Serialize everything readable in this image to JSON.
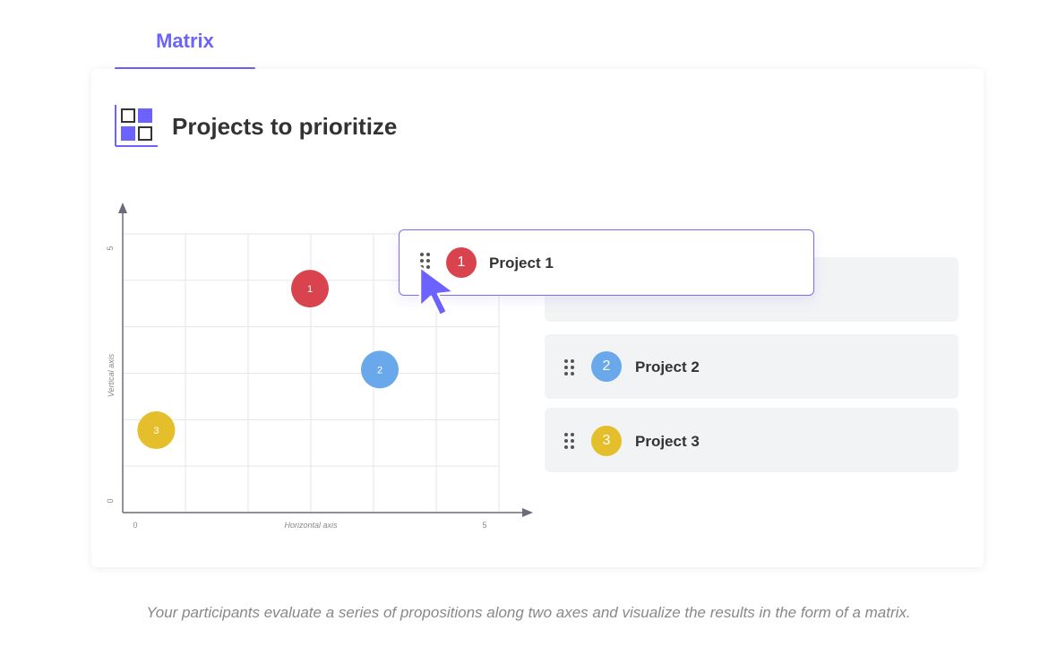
{
  "tab": {
    "label": "Matrix"
  },
  "header": {
    "title": "Projects to prioritize",
    "icon": "matrix-icon"
  },
  "accent_color": "#6c63ff",
  "chart_data": {
    "type": "scatter",
    "xlabel": "Horizontal axis",
    "ylabel": "Vertical axis",
    "xlim": [
      0,
      5
    ],
    "ylim": [
      0,
      5
    ],
    "x_ticks": [
      "0",
      "5"
    ],
    "y_ticks": [
      "0",
      "5"
    ],
    "grid": true,
    "points": [
      {
        "label": "1",
        "x": 2.5,
        "y": 4.2,
        "color": "#d9434e"
      },
      {
        "label": "2",
        "x": 3.5,
        "y": 2.6,
        "color": "#6aa8ec"
      },
      {
        "label": "3",
        "x": 0.3,
        "y": 1.4,
        "color": "#e5bf2b"
      }
    ]
  },
  "projects": [
    {
      "number": "1",
      "name": "Project 1",
      "color": "#d9434e"
    },
    {
      "number": "2",
      "name": "Project 2",
      "color": "#6aa8ec"
    },
    {
      "number": "3",
      "name": "Project 3",
      "color": "#e5bf2b"
    }
  ],
  "caption": "Your participants evaluate a series of propositions along two axes and visualize the results in the form of a matrix."
}
